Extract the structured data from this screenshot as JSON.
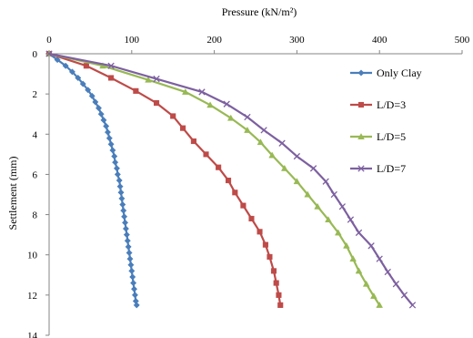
{
  "chart_data": {
    "type": "line",
    "title": "",
    "xlabel": "Pressure (kN/m²)",
    "ylabel": "Settlement (mm)",
    "xlim": [
      0,
      500
    ],
    "ylim": [
      0,
      14
    ],
    "y_reversed": true,
    "x_axis_position": "top",
    "x_ticks": [
      "0",
      "100",
      "200",
      "300",
      "400",
      "500"
    ],
    "y_ticks": [
      "0",
      "2",
      "4",
      "6",
      "8",
      "10",
      "12",
      "14"
    ],
    "grid": false,
    "legend_position": "top-right",
    "series": [
      {
        "name": "Only Clay",
        "color": "#4a7ebb",
        "marker": "diamond",
        "points": [
          [
            0,
            0
          ],
          [
            10,
            0.3
          ],
          [
            20,
            0.6
          ],
          [
            28,
            0.9
          ],
          [
            35,
            1.2
          ],
          [
            41,
            1.5
          ],
          [
            47,
            1.8
          ],
          [
            52,
            2.1
          ],
          [
            56,
            2.4
          ],
          [
            60,
            2.7
          ],
          [
            63,
            3.0
          ],
          [
            66,
            3.3
          ],
          [
            69,
            3.6
          ],
          [
            71,
            3.9
          ],
          [
            73,
            4.2
          ],
          [
            75,
            4.5
          ],
          [
            77,
            4.8
          ],
          [
            79,
            5.1
          ],
          [
            80,
            5.4
          ],
          [
            82,
            5.7
          ],
          [
            83,
            6.0
          ],
          [
            85,
            6.3
          ],
          [
            86,
            6.6
          ],
          [
            87,
            6.9
          ],
          [
            88,
            7.2
          ],
          [
            89,
            7.5
          ],
          [
            90,
            7.8
          ],
          [
            91,
            8.1
          ],
          [
            92,
            8.4
          ],
          [
            93,
            8.7
          ],
          [
            94,
            9.0
          ],
          [
            95,
            9.3
          ],
          [
            96,
            9.6
          ],
          [
            97,
            9.9
          ],
          [
            98,
            10.2
          ],
          [
            99,
            10.5
          ],
          [
            100,
            10.8
          ],
          [
            101,
            11.1
          ],
          [
            102,
            11.4
          ],
          [
            103,
            11.7
          ],
          [
            104,
            12.0
          ],
          [
            105,
            12.3
          ],
          [
            106,
            12.5
          ]
        ]
      },
      {
        "name": "L/D=3",
        "color": "#be4b48",
        "marker": "square",
        "points": [
          [
            0,
            0
          ],
          [
            45,
            0.6
          ],
          [
            75,
            1.2
          ],
          [
            105,
            1.85
          ],
          [
            130,
            2.45
          ],
          [
            150,
            3.1
          ],
          [
            162,
            3.7
          ],
          [
            175,
            4.35
          ],
          [
            190,
            5.0
          ],
          [
            205,
            5.65
          ],
          [
            217,
            6.3
          ],
          [
            225,
            6.9
          ],
          [
            235,
            7.55
          ],
          [
            245,
            8.2
          ],
          [
            255,
            8.85
          ],
          [
            262,
            9.5
          ],
          [
            267,
            10.1
          ],
          [
            272,
            10.8
          ],
          [
            275,
            11.4
          ],
          [
            278,
            12.0
          ],
          [
            280,
            12.5
          ]
        ]
      },
      {
        "name": "L/D=5",
        "color": "#98b954",
        "marker": "triangle",
        "points": [
          [
            0,
            0
          ],
          [
            65,
            0.6
          ],
          [
            120,
            1.3
          ],
          [
            165,
            1.9
          ],
          [
            195,
            2.55
          ],
          [
            220,
            3.2
          ],
          [
            240,
            3.8
          ],
          [
            256,
            4.4
          ],
          [
            270,
            5.05
          ],
          [
            285,
            5.7
          ],
          [
            300,
            6.35
          ],
          [
            313,
            7.0
          ],
          [
            325,
            7.6
          ],
          [
            338,
            8.25
          ],
          [
            350,
            8.9
          ],
          [
            360,
            9.55
          ],
          [
            368,
            10.2
          ],
          [
            375,
            10.8
          ],
          [
            384,
            11.45
          ],
          [
            393,
            12.05
          ],
          [
            400,
            12.5
          ]
        ]
      },
      {
        "name": "L/D=7",
        "color": "#7d60a0",
        "marker": "x",
        "points": [
          [
            0,
            0
          ],
          [
            75,
            0.6
          ],
          [
            130,
            1.25
          ],
          [
            185,
            1.9
          ],
          [
            215,
            2.5
          ],
          [
            240,
            3.15
          ],
          [
            260,
            3.8
          ],
          [
            282,
            4.45
          ],
          [
            300,
            5.1
          ],
          [
            320,
            5.7
          ],
          [
            335,
            6.35
          ],
          [
            345,
            7.0
          ],
          [
            355,
            7.6
          ],
          [
            365,
            8.25
          ],
          [
            375,
            8.9
          ],
          [
            390,
            9.55
          ],
          [
            400,
            10.2
          ],
          [
            410,
            10.85
          ],
          [
            420,
            11.45
          ],
          [
            430,
            12.0
          ],
          [
            440,
            12.5
          ]
        ]
      }
    ]
  }
}
